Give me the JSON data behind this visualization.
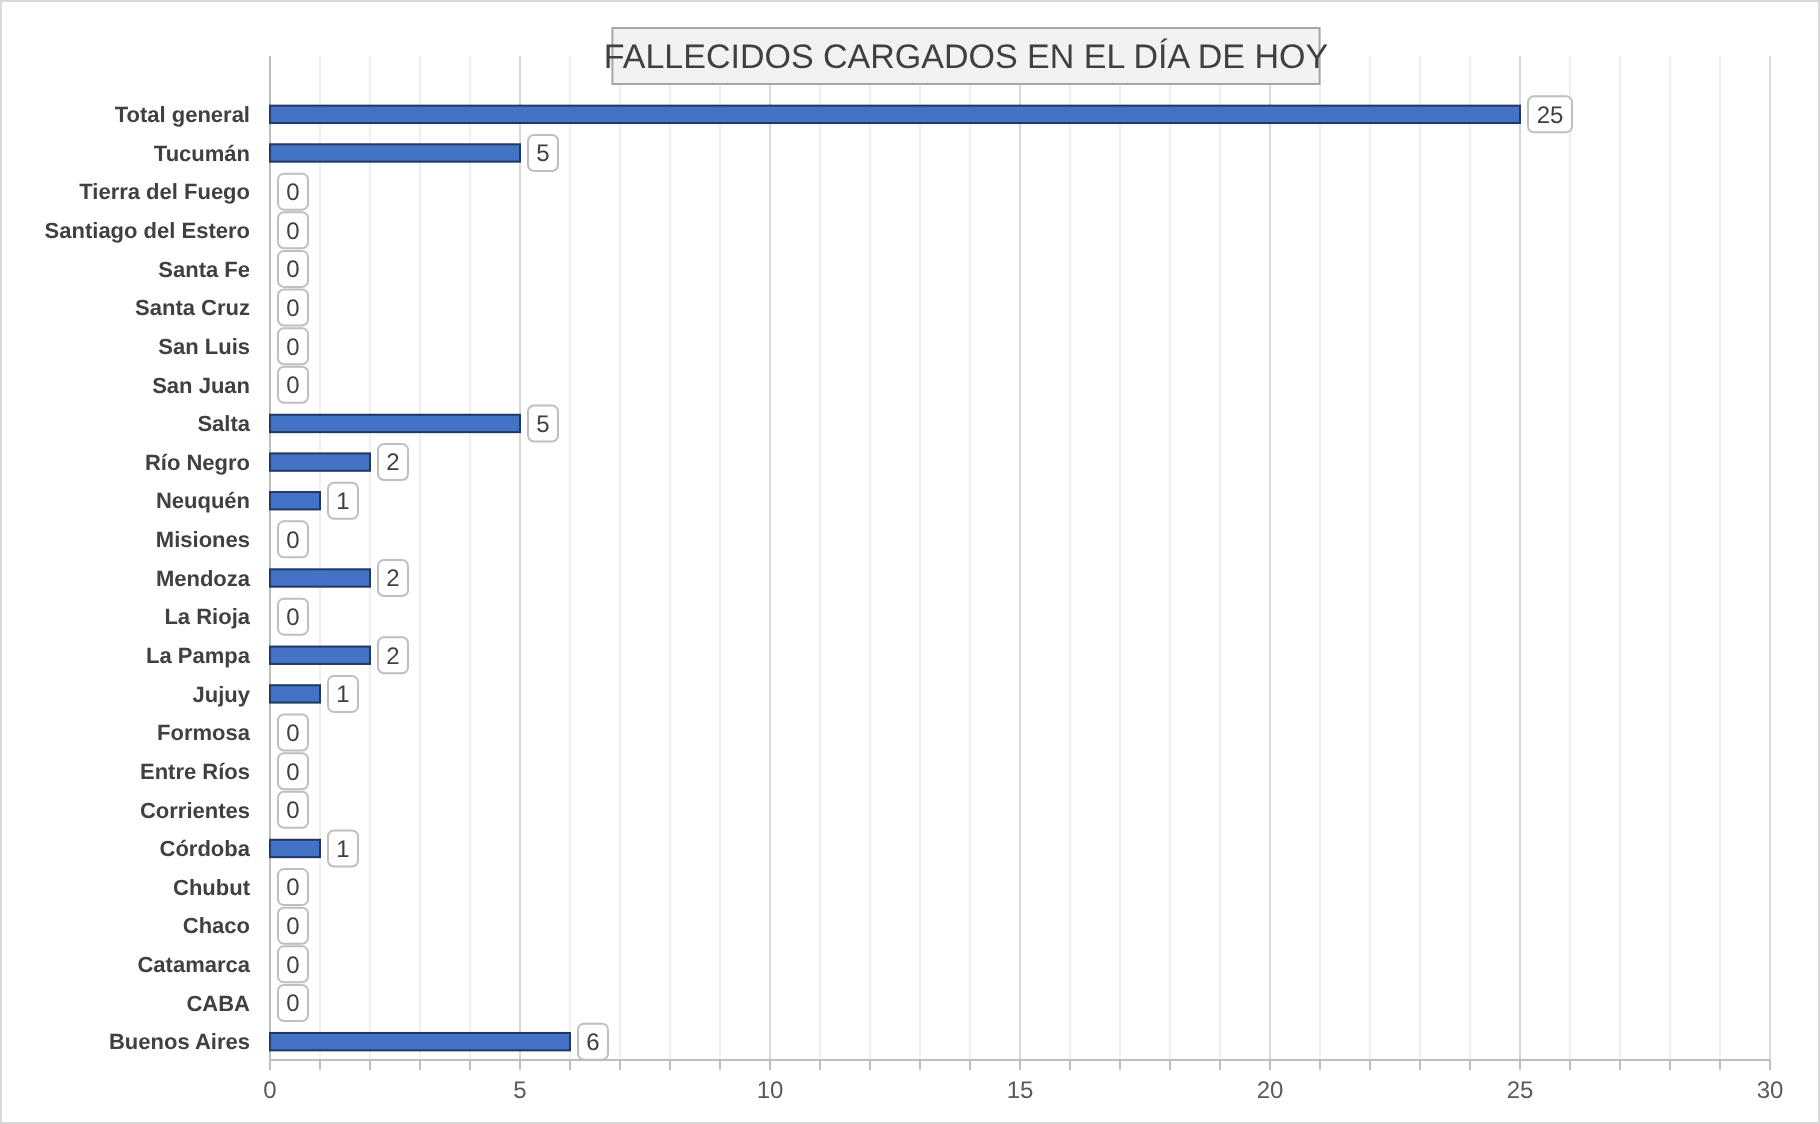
{
  "chart_data": {
    "type": "bar",
    "orientation": "horizontal",
    "title": "FALLECIDOS CARGADOS EN EL DÍA DE HOY",
    "categories": [
      "Total general",
      "Tucumán",
      "Tierra del Fuego",
      "Santiago del Estero",
      "Santa Fe",
      "Santa Cruz",
      "San Luis",
      "San Juan",
      "Salta",
      "Río Negro",
      "Neuquén",
      "Misiones",
      "Mendoza",
      "La Rioja",
      "La Pampa",
      "Jujuy",
      "Formosa",
      "Entre Ríos",
      "Corrientes",
      "Córdoba",
      "Chubut",
      "Chaco",
      "Catamarca",
      "CABA",
      "Buenos Aires"
    ],
    "values": [
      25,
      5,
      0,
      0,
      0,
      0,
      0,
      0,
      5,
      2,
      1,
      0,
      2,
      0,
      2,
      1,
      0,
      0,
      0,
      1,
      0,
      0,
      0,
      0,
      6
    ],
    "color": "#4472c4",
    "xlim": [
      0,
      30
    ],
    "xticks": [
      0,
      {
        "value": 1,
        "label": null
      },
      {
        "value": 2,
        "label": null
      },
      {
        "value": 3,
        "label": null
      },
      {
        "value": 4,
        "label": null
      },
      5,
      {
        "value": 6,
        "label": null
      },
      {
        "value": 7,
        "label": null
      },
      {
        "value": 8,
        "label": null
      },
      {
        "value": 9,
        "label": null
      },
      10,
      {
        "value": 11,
        "label": null
      },
      {
        "value": 12,
        "label": null
      },
      {
        "value": 13,
        "label": null
      },
      {
        "value": 14,
        "label": null
      },
      15,
      {
        "value": 16,
        "label": null
      },
      {
        "value": 17,
        "label": null
      },
      {
        "value": 18,
        "label": null
      },
      {
        "value": 19,
        "label": null
      },
      20,
      {
        "value": 21,
        "label": null
      },
      {
        "value": 22,
        "label": null
      },
      {
        "value": 23,
        "label": null
      },
      {
        "value": 24,
        "label": null
      },
      25,
      {
        "value": 26,
        "label": null
      },
      {
        "value": 27,
        "label": null
      },
      {
        "value": 28,
        "label": null
      },
      {
        "value": 29,
        "label": null
      },
      30
    ],
    "grid": true,
    "data_labels": true
  }
}
